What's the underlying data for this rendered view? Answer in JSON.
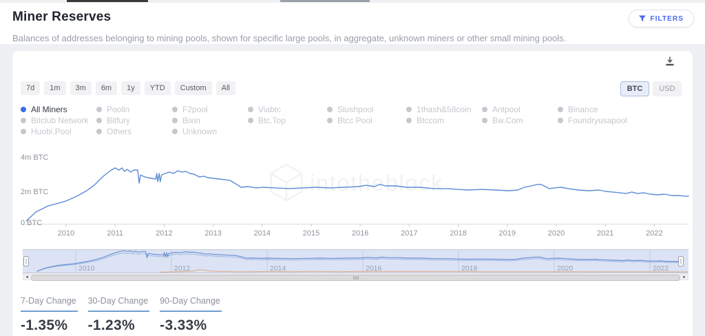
{
  "header": {
    "title": "Miner Reserves",
    "subtitle": "Balances of addresses belonging to mining pools, shown for specific large pools, in aggregate, unknown miners or other small mining pools.",
    "filters_label": "FILTERS"
  },
  "controls": {
    "ranges": [
      "7d",
      "1m",
      "3m",
      "6m",
      "1y",
      "YTD",
      "Custom",
      "All"
    ],
    "units": [
      {
        "label": "BTC",
        "active": true
      },
      {
        "label": "USD",
        "active": false
      }
    ]
  },
  "legend": {
    "columns": [
      [
        {
          "label": "All Miners",
          "active": true
        },
        {
          "label": "Bitclub Network",
          "active": false
        },
        {
          "label": "Huobi.Pool",
          "active": false
        }
      ],
      [
        {
          "label": "Poolin",
          "active": false
        },
        {
          "label": "Bitfury",
          "active": false
        },
        {
          "label": "Others",
          "active": false
        }
      ],
      [
        {
          "label": "F2pool",
          "active": false
        },
        {
          "label": "Bixin",
          "active": false
        },
        {
          "label": "Unknown",
          "active": false
        }
      ],
      [
        {
          "label": "Viabtc",
          "active": false
        },
        {
          "label": "Btc.Top",
          "active": false
        }
      ],
      [
        {
          "label": "Slushpool",
          "active": false
        },
        {
          "label": "Btcc Pool",
          "active": false
        }
      ],
      [
        {
          "label": "1thash&58coin",
          "active": false
        },
        {
          "label": "Btccom",
          "active": false
        }
      ],
      [
        {
          "label": "Antpool",
          "active": false
        },
        {
          "label": "Bw.Com",
          "active": false
        }
      ],
      [
        {
          "label": "Binance",
          "active": false
        },
        {
          "label": "Foundryusapool",
          "active": false
        }
      ]
    ]
  },
  "chart_data": {
    "type": "line",
    "title": "Miner Reserves",
    "unit": "BTC",
    "watermark": "intotheblock",
    "y_ticks": [
      "4m BTC",
      "2m BTC",
      "0 BTC"
    ],
    "ylim_m_btc": [
      0,
      4.4
    ],
    "x_ticks": [
      2010,
      2011,
      2012,
      2013,
      2014,
      2015,
      2016,
      2017,
      2018,
      2019,
      2020,
      2021,
      2022
    ],
    "navigator_ticks": [
      2010,
      2012,
      2014,
      2016,
      2018,
      2020,
      2022
    ],
    "series": [
      {
        "name": "All Miners",
        "color": "#5b8bd5",
        "units": "million BTC",
        "x": [
          2009.19,
          2009.38,
          2009.63,
          2009.85,
          2010.0,
          2010.22,
          2010.42,
          2010.59,
          2010.76,
          2010.9,
          2011.0,
          2011.08,
          2011.14,
          2011.19,
          2011.25,
          2011.32,
          2011.38,
          2011.46,
          2011.49,
          2011.52,
          2011.57,
          2011.66,
          2011.74,
          2011.83,
          2011.85,
          2011.87,
          2011.9,
          2011.92,
          2011.95,
          2012.02,
          2012.11,
          2012.19,
          2012.28,
          2012.36,
          2012.44,
          2012.53,
          2012.61,
          2012.72,
          2012.81,
          2012.89,
          2013.01,
          2013.12,
          2013.23,
          2013.34,
          2013.46,
          2013.57,
          2013.71,
          2013.88,
          2014.02,
          2014.27,
          2014.55,
          2014.83,
          2015.11,
          2015.39,
          2015.67,
          2015.96,
          2016.12,
          2016.29,
          2016.4,
          2016.52,
          2016.73,
          2016.94,
          2017.22,
          2017.5,
          2017.78,
          2017.99,
          2018.2,
          2018.48,
          2018.76,
          2019.04,
          2019.21,
          2019.35,
          2019.49,
          2019.61,
          2019.69,
          2019.78,
          2019.85,
          2019.96,
          2020.1,
          2020.24,
          2020.45,
          2020.66,
          2020.87,
          2021.01,
          2021.15,
          2021.29,
          2021.43,
          2021.54,
          2021.66,
          2021.78,
          2021.92,
          2022.07,
          2022.21,
          2022.35,
          2022.49,
          2022.63,
          2022.7
        ],
        "values": [
          0.17,
          0.71,
          1.08,
          1.25,
          1.38,
          1.67,
          2.0,
          2.38,
          2.88,
          3.21,
          3.38,
          3.25,
          3.38,
          3.17,
          3.29,
          3.13,
          3.25,
          3.25,
          2.46,
          2.96,
          2.88,
          2.79,
          2.75,
          2.71,
          3.04,
          2.54,
          3.04,
          2.54,
          2.96,
          3.04,
          3.13,
          3.04,
          3.21,
          3.13,
          3.17,
          3.04,
          3.0,
          2.83,
          2.88,
          2.79,
          2.75,
          2.71,
          2.67,
          2.63,
          2.42,
          2.21,
          2.25,
          2.17,
          2.21,
          2.17,
          2.13,
          2.17,
          2.21,
          2.17,
          2.21,
          2.25,
          2.33,
          2.25,
          2.38,
          2.29,
          2.29,
          2.21,
          2.21,
          2.13,
          2.13,
          2.08,
          2.04,
          2.08,
          2.04,
          2.0,
          2.04,
          2.21,
          2.29,
          2.38,
          2.38,
          2.25,
          2.13,
          2.17,
          2.21,
          2.13,
          2.04,
          2.0,
          2.04,
          1.96,
          1.92,
          1.88,
          1.83,
          1.92,
          1.83,
          1.88,
          1.79,
          1.75,
          1.79,
          1.71,
          1.71,
          1.67,
          1.67
        ]
      },
      {
        "name": "minor-pool-navigator-trace",
        "color": "#dd9a66",
        "units": "million BTC",
        "x": [
          2011.75,
          2011.9,
          2012.0,
          2012.15,
          2012.3,
          2012.45,
          2012.6,
          2012.8,
          2013.0,
          2013.3,
          2013.6,
          2014.0,
          2014.5,
          2015.0,
          2015.5,
          2016.0,
          2016.5,
          2017.0,
          2017.5,
          2018.0,
          2018.5,
          2019.0,
          2019.5,
          2020.0,
          2020.5,
          2021.0,
          2021.5,
          2022.0,
          2022.5,
          2022.8
        ],
        "values": [
          0.02,
          0.05,
          0.08,
          0.1,
          0.12,
          0.2,
          0.42,
          0.22,
          0.14,
          0.1,
          0.1,
          0.12,
          0.1,
          0.12,
          0.1,
          0.12,
          0.12,
          0.14,
          0.12,
          0.12,
          0.1,
          0.1,
          0.1,
          0.1,
          0.1,
          0.08,
          0.08,
          0.08,
          0.06,
          0.06
        ]
      }
    ]
  },
  "stats": [
    {
      "label": "7-Day Change",
      "value": "-1.35%"
    },
    {
      "label": "30-Day Change",
      "value": "-1.23%"
    },
    {
      "label": "90-Day Change",
      "value": "-3.33%"
    }
  ],
  "icons": {
    "scroll_left": "◂",
    "scroll_right": "▸"
  },
  "colors": {
    "accent": "#4a6cf0",
    "line": "#5b8bd5",
    "active_dot": "#3d6de8",
    "stat_underline": "#6f9ed1",
    "navigator_bg": "#dce3f4"
  }
}
